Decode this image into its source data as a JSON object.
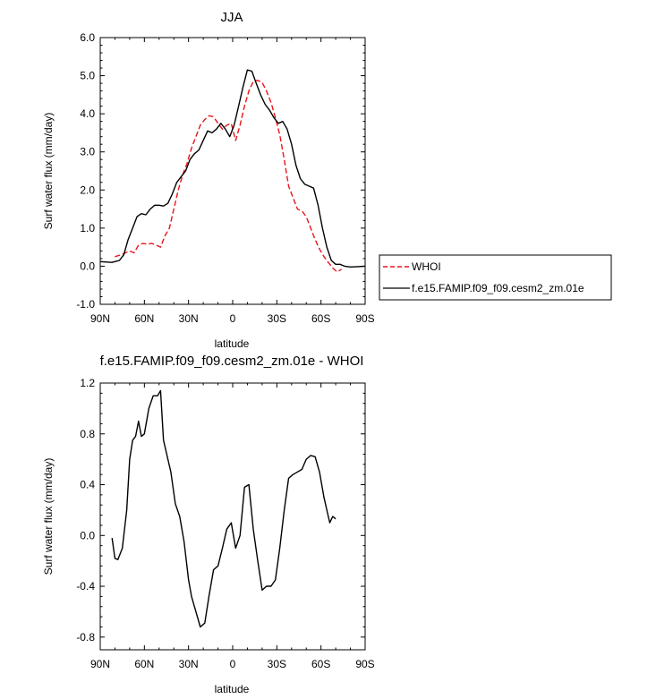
{
  "chart_data": [
    {
      "type": "line",
      "title": "JJA",
      "xlabel": "latitude",
      "ylabel": "Surf water flux (mm/day)",
      "xlim": [
        90,
        -90
      ],
      "ylim": [
        -1.0,
        6.0
      ],
      "xticks": [
        90,
        60,
        30,
        0,
        -30,
        -60,
        -90
      ],
      "xtick_labels": [
        "90N",
        "60N",
        "30N",
        "0",
        "30S",
        "60S",
        "90S"
      ],
      "yticks": [
        -1.0,
        0.0,
        1.0,
        2.0,
        3.0,
        4.0,
        5.0,
        6.0
      ],
      "ytick_labels": [
        "-1.0",
        "0.0",
        "1.0",
        "2.0",
        "3.0",
        "4.0",
        "5.0",
        "6.0"
      ],
      "legend_position": "right",
      "series": [
        {
          "name": "WHOI",
          "color": "#e8141c",
          "dash": "dashed",
          "x": [
            80,
            76,
            73,
            70,
            67,
            64,
            61,
            58,
            55,
            52,
            49,
            46,
            43,
            40,
            37,
            34,
            31,
            28,
            25,
            22,
            19,
            16,
            13,
            10,
            7,
            4,
            1,
            -2,
            -5,
            -8,
            -11,
            -14,
            -17,
            -20,
            -23,
            -26,
            -29,
            -32,
            -35,
            -38,
            -41,
            -44,
            -47,
            -50,
            -53,
            -56,
            -59,
            -62,
            -65,
            -68,
            -71,
            -74
          ],
          "y": [
            0.25,
            0.3,
            0.35,
            0.4,
            0.35,
            0.55,
            0.6,
            0.58,
            0.6,
            0.55,
            0.5,
            0.8,
            1.0,
            1.5,
            2.0,
            2.4,
            2.7,
            3.1,
            3.4,
            3.7,
            3.85,
            3.95,
            3.92,
            3.75,
            3.6,
            3.7,
            3.75,
            3.3,
            3.7,
            4.2,
            4.6,
            4.85,
            4.88,
            4.82,
            4.6,
            4.3,
            3.9,
            3.45,
            2.8,
            2.1,
            1.8,
            1.5,
            1.45,
            1.3,
            1.0,
            0.7,
            0.45,
            0.25,
            0.1,
            -0.05,
            -0.15,
            -0.08
          ]
        },
        {
          "name": "f.e15.FAMIP.f09_f09.cesm2_zm.01e",
          "color": "#000000",
          "dash": "solid",
          "x": [
            90,
            82,
            80,
            77,
            74,
            71,
            68,
            65,
            62,
            59,
            56,
            53,
            50,
            47,
            44,
            41,
            38,
            35,
            32,
            29,
            26,
            23,
            20,
            17,
            14,
            11,
            8,
            5,
            2,
            -1,
            -4,
            -7,
            -10,
            -13,
            -16,
            -19,
            -22,
            -25,
            -28,
            -31,
            -34,
            -37,
            -40,
            -43,
            -46,
            -49,
            -52,
            -55,
            -58,
            -61,
            -64,
            -67,
            -70,
            -73,
            -76,
            -80,
            -85,
            -90
          ],
          "y": [
            0.12,
            0.1,
            0.12,
            0.15,
            0.3,
            0.7,
            1.0,
            1.3,
            1.38,
            1.35,
            1.5,
            1.6,
            1.6,
            1.58,
            1.65,
            1.9,
            2.2,
            2.35,
            2.5,
            2.8,
            2.95,
            3.05,
            3.3,
            3.55,
            3.5,
            3.6,
            3.75,
            3.6,
            3.4,
            3.7,
            4.2,
            4.7,
            5.15,
            5.12,
            4.8,
            4.5,
            4.25,
            4.1,
            3.9,
            3.75,
            3.8,
            3.6,
            3.2,
            2.65,
            2.3,
            2.15,
            2.1,
            2.05,
            1.6,
            1.0,
            0.5,
            0.15,
            0.05,
            0.05,
            0.0,
            -0.02,
            -0.01,
            0.0
          ]
        }
      ]
    },
    {
      "type": "line",
      "title": "f.e15.FAMIP.f09_f09.cesm2_zm.01e - WHOI",
      "xlabel": "latitude",
      "ylabel": "Surf water flux (mm/day)",
      "xlim": [
        90,
        -90
      ],
      "ylim": [
        -0.9,
        1.2
      ],
      "xticks": [
        90,
        60,
        30,
        0,
        -30,
        -60,
        -90
      ],
      "xtick_labels": [
        "90N",
        "60N",
        "30N",
        "0",
        "30S",
        "60S",
        "90S"
      ],
      "yticks": [
        -0.8,
        -0.4,
        0.0,
        0.4,
        0.8,
        1.2
      ],
      "ytick_labels": [
        "-0.8",
        "-0.4",
        "0.0",
        "0.4",
        "0.8",
        "1.2"
      ],
      "series": [
        {
          "color": "#000000",
          "dash": "solid",
          "x": [
            82,
            80,
            78,
            75,
            72,
            70,
            68,
            66,
            64,
            62,
            60,
            57,
            54,
            51,
            49,
            47,
            44,
            42,
            39,
            36,
            33,
            30,
            28,
            25,
            22,
            19,
            16,
            13,
            10,
            7,
            4,
            1,
            -2,
            -5,
            -8,
            -11,
            -14,
            -17,
            -20,
            -23,
            -26,
            -29,
            -32,
            -35,
            -38,
            -41,
            -44,
            -47,
            -50,
            -53,
            -56,
            -59,
            -62,
            -64,
            -66,
            -68,
            -70
          ],
          "y": [
            -0.02,
            -0.18,
            -0.19,
            -0.1,
            0.2,
            0.6,
            0.75,
            0.78,
            0.9,
            0.78,
            0.8,
            1.0,
            1.1,
            1.1,
            1.14,
            0.75,
            0.6,
            0.5,
            0.25,
            0.15,
            -0.05,
            -0.35,
            -0.48,
            -0.6,
            -0.72,
            -0.69,
            -0.47,
            -0.27,
            -0.24,
            -0.1,
            0.05,
            0.1,
            -0.1,
            0.0,
            0.38,
            0.4,
            0.05,
            -0.2,
            -0.43,
            -0.4,
            -0.4,
            -0.35,
            -0.1,
            0.2,
            0.45,
            0.48,
            0.5,
            0.52,
            0.6,
            0.63,
            0.62,
            0.5,
            0.3,
            0.2,
            0.1,
            0.15,
            0.13
          ]
        }
      ]
    }
  ]
}
